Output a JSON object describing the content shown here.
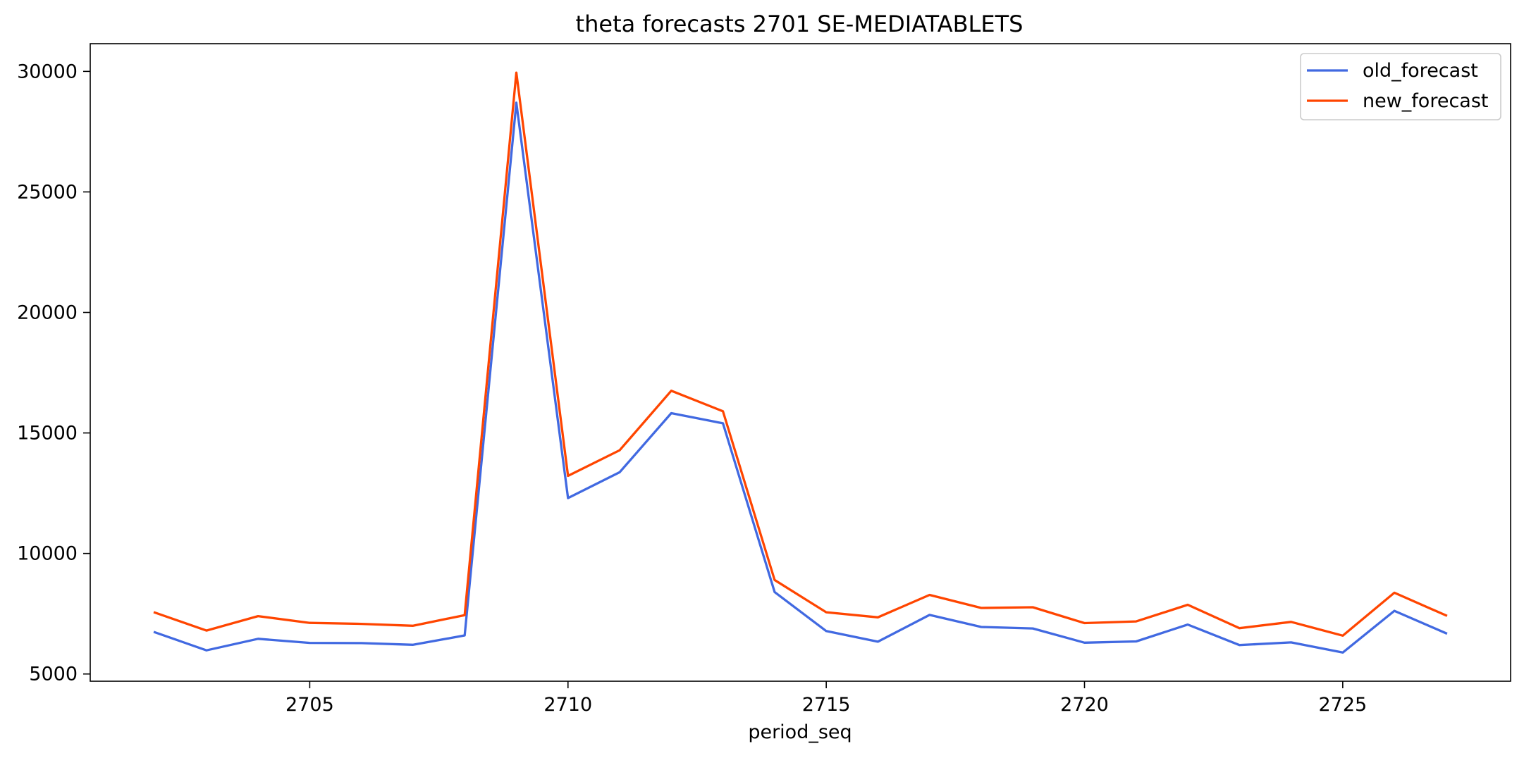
{
  "chart_data": {
    "type": "line",
    "title": "theta forecasts 2701 SE-MEDIATABLETS",
    "xlabel": "period_seq",
    "ylabel": "",
    "x": [
      2702,
      2703,
      2704,
      2705,
      2706,
      2707,
      2708,
      2709,
      2710,
      2711,
      2712,
      2713,
      2714,
      2715,
      2716,
      2717,
      2718,
      2719,
      2720,
      2721,
      2722,
      2723,
      2724,
      2725,
      2726,
      2727
    ],
    "xlim": [
      2700.75,
      2728.25
    ],
    "ylim": [
      4700,
      31150
    ],
    "xticks": [
      2705,
      2710,
      2715,
      2720,
      2725
    ],
    "yticks": [
      5000,
      10000,
      15000,
      20000,
      25000,
      30000
    ],
    "grid": false,
    "legend_position": "top-right",
    "series": [
      {
        "name": "old_forecast",
        "color": "#4169e1",
        "values": [
          6730,
          5980,
          6460,
          6290,
          6280,
          6210,
          6600,
          28700,
          12300,
          13370,
          15820,
          15400,
          8400,
          6780,
          6340,
          7450,
          6950,
          6890,
          6300,
          6350,
          7050,
          6200,
          6310,
          5890,
          7620,
          6690
        ]
      },
      {
        "name": "new_forecast",
        "color": "#ff4500",
        "values": [
          7550,
          6800,
          7400,
          7120,
          7080,
          7000,
          7440,
          29950,
          13220,
          14280,
          16750,
          15900,
          8900,
          7560,
          7350,
          8280,
          7740,
          7770,
          7110,
          7180,
          7870,
          6900,
          7160,
          6590,
          8370,
          7430
        ]
      }
    ]
  }
}
